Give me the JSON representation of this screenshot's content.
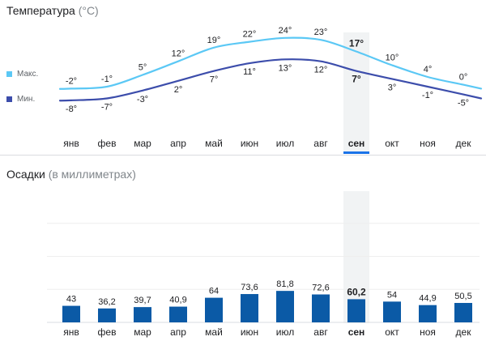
{
  "temperature": {
    "title": "Температура",
    "unit_note": "(°C)",
    "legend": {
      "max": "Макс.",
      "min": "Мин."
    },
    "colors": {
      "max": "#5bc8f5",
      "min": "#3c4dab"
    }
  },
  "precipitation": {
    "title": "Осадки",
    "unit_note": "(в миллиметрах)",
    "color": "#0b5aa6"
  },
  "selected_month_index": 8,
  "accent_color": "#1a73e8",
  "chart_data": [
    {
      "type": "line",
      "categories": [
        "янв",
        "фев",
        "мар",
        "апр",
        "май",
        "июн",
        "июл",
        "авг",
        "сен",
        "окт",
        "ноя",
        "дек"
      ],
      "series": [
        {
          "name": "Макс.",
          "values": [
            -2,
            -1,
            5,
            12,
            19,
            22,
            24,
            23,
            17,
            10,
            4,
            0
          ],
          "labels": [
            "-2°",
            "-1°",
            "5°",
            "12°",
            "19°",
            "22°",
            "24°",
            "23°",
            "17°",
            "10°",
            "4°",
            "0°"
          ]
        },
        {
          "name": "Мин.",
          "values": [
            -8,
            -7,
            -3,
            2,
            7,
            11,
            13,
            12,
            7,
            3,
            -1,
            -5
          ],
          "labels": [
            "-8°",
            "-7°",
            "-3°",
            "2°",
            "7°",
            "11°",
            "13°",
            "12°",
            "7°",
            "3°",
            "-1°",
            "-5°"
          ]
        }
      ],
      "title": "Температура (°C)",
      "legend_position": "left"
    },
    {
      "type": "bar",
      "categories": [
        "янв",
        "фев",
        "мар",
        "апр",
        "май",
        "июн",
        "июл",
        "авг",
        "сен",
        "окт",
        "ноя",
        "дек"
      ],
      "values": [
        43,
        36.2,
        39.7,
        40.9,
        64,
        73.6,
        81.8,
        72.6,
        60.2,
        54,
        44.9,
        50.5
      ],
      "labels": [
        "43",
        "36,2",
        "39,7",
        "40,9",
        "64",
        "73,6",
        "81,8",
        "72,6",
        "60,2",
        "54",
        "44,9",
        "50,5"
      ],
      "title": "Осадки (в миллиметрах)",
      "ylim": [
        0,
        200
      ],
      "grid": true
    }
  ]
}
